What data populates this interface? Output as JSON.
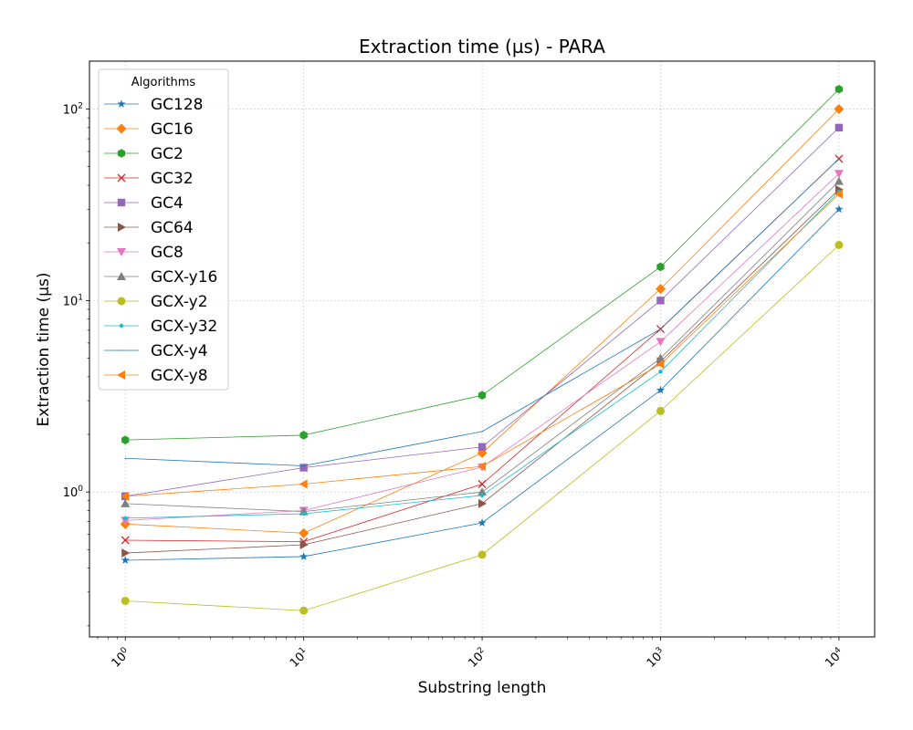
{
  "chart_data": {
    "type": "line",
    "title": "Extraction time (µs) - PARA",
    "xlabel": "Substring length",
    "ylabel": "Extraction time (µs)",
    "xscale": "log",
    "yscale": "log",
    "grid": true,
    "legend_title": "Algorithms",
    "legend_position": "upper left",
    "x": [
      1,
      10,
      100,
      1000,
      10000
    ],
    "x_tick_labels": [
      {
        "base": "10",
        "exp": "0"
      },
      {
        "base": "10",
        "exp": "1"
      },
      {
        "base": "10",
        "exp": "2"
      },
      {
        "base": "10",
        "exp": "3"
      },
      {
        "base": "10",
        "exp": "4"
      }
    ],
    "y_tick_labels": [
      {
        "value": 1,
        "base": "10",
        "exp": "0"
      },
      {
        "value": 10,
        "base": "10",
        "exp": "1"
      },
      {
        "value": 100,
        "base": "10",
        "exp": "2"
      }
    ],
    "series": [
      {
        "name": "GC128",
        "color": "#1f77b4",
        "marker": "star",
        "values": [
          0.44,
          0.46,
          0.69,
          3.4,
          30
        ]
      },
      {
        "name": "GC16",
        "color": "#ff7f0e",
        "marker": "diamond",
        "values": [
          0.68,
          0.61,
          1.6,
          11.5,
          100
        ]
      },
      {
        "name": "GC2",
        "color": "#2ca02c",
        "marker": "hexagon",
        "values": [
          1.87,
          1.98,
          3.2,
          15,
          127
        ]
      },
      {
        "name": "GC32",
        "color": "#d62728",
        "marker": "x",
        "values": [
          0.56,
          0.55,
          1.1,
          7.1,
          55
        ]
      },
      {
        "name": "GC4",
        "color": "#9467bd",
        "marker": "square",
        "values": [
          0.95,
          1.34,
          1.72,
          10,
          80
        ]
      },
      {
        "name": "GC64",
        "color": "#8c564b",
        "marker": "triangle-right",
        "values": [
          0.48,
          0.53,
          0.87,
          4.8,
          38
        ]
      },
      {
        "name": "GC8",
        "color": "#e377c2",
        "marker": "triangle-down",
        "values": [
          0.71,
          0.8,
          1.35,
          6.1,
          46
        ]
      },
      {
        "name": "GCX-y16",
        "color": "#7f7f7f",
        "marker": "triangle-up",
        "values": [
          0.87,
          0.79,
          1.0,
          5.0,
          42
        ]
      },
      {
        "name": "GCX-y2",
        "color": "#bcbd22",
        "marker": "circle",
        "values": [
          0.27,
          0.24,
          0.47,
          2.65,
          19.5
        ]
      },
      {
        "name": "GCX-y32",
        "color": "#17becf",
        "marker": "point",
        "values": [
          0.73,
          0.77,
          0.96,
          4.25,
          37
        ]
      },
      {
        "name": "GCX-y4",
        "color": "#1f77b4",
        "marker": "pixel",
        "values": [
          1.5,
          1.37,
          2.07,
          7.1,
          55
        ]
      },
      {
        "name": "GCX-y8",
        "color": "#ff7f0e",
        "marker": "triangle-left",
        "values": [
          0.95,
          1.1,
          1.36,
          4.65,
          36
        ]
      }
    ]
  }
}
